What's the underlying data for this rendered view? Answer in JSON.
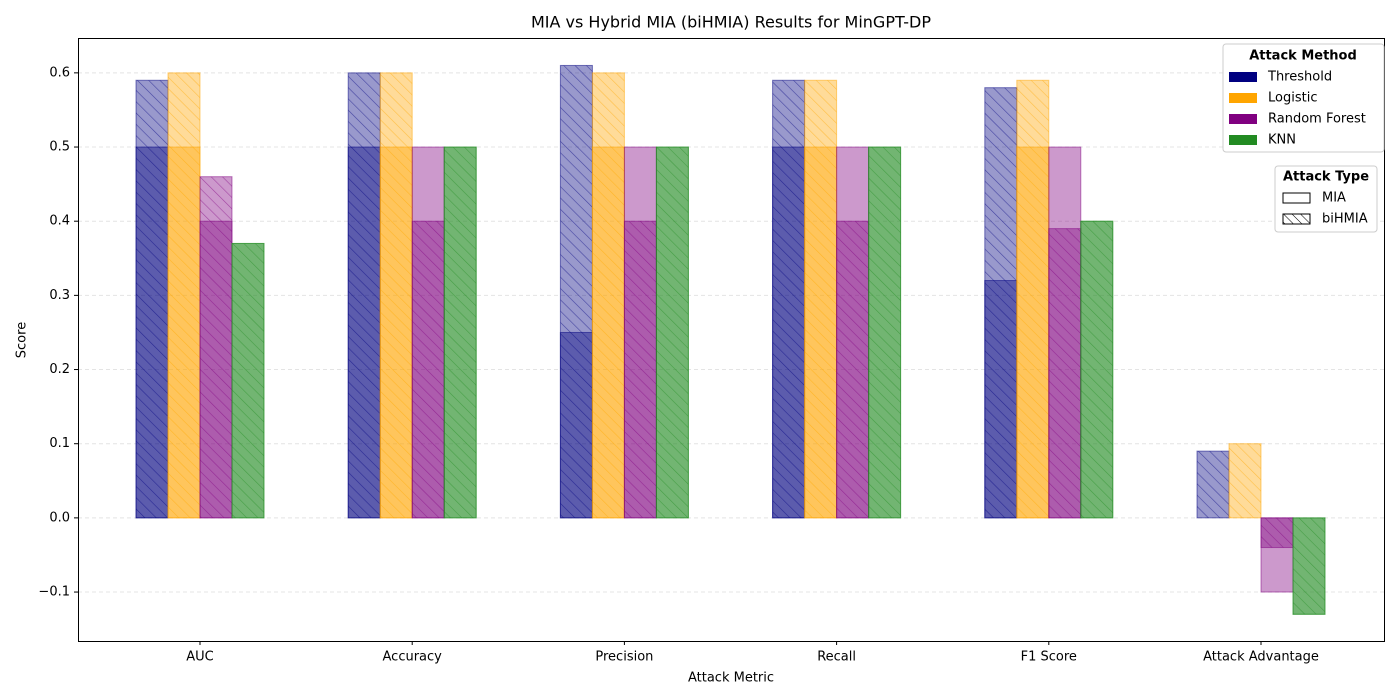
{
  "chart_data": {
    "type": "overlaid-bar",
    "title": "MIA vs Hybrid MIA (biHMIA) Results for MinGPT-DP",
    "xlabel": "Attack Metric",
    "ylabel": "Score",
    "categories": [
      "AUC",
      "Accuracy",
      "Precision",
      "Recall",
      "F1 Score",
      "Attack Advantage"
    ],
    "series": [
      {
        "name": "Threshold",
        "color": "#000080",
        "values": [
          0.5,
          0.5,
          0.25,
          0.5,
          0.32,
          0
        ],
        "hatched_values": [
          0.59,
          0.6,
          0.61,
          0.59,
          0.58,
          0.09
        ]
      },
      {
        "name": "Logistic",
        "color": "#ffa500",
        "values": [
          0.5,
          0.5,
          0.5,
          0.5,
          0.5,
          0
        ],
        "hatched_values": [
          0.6,
          0.6,
          0.6,
          0.59,
          0.59,
          0.1
        ]
      },
      {
        "name": "Random Forest",
        "color": "#800080",
        "values": [
          0.4,
          0.5,
          0.5,
          0.5,
          0.5,
          -0.1
        ],
        "hatched_values": [
          0.46,
          0.4,
          0.4,
          0.4,
          0.39,
          -0.04
        ]
      },
      {
        "name": "KNN",
        "color": "#228b22",
        "values": [
          0.37,
          0.5,
          0.5,
          0.5,
          0.4,
          -0.13
        ],
        "hatched_values": [
          0.37,
          0.5,
          0.5,
          0.5,
          0.4,
          -0.13
        ]
      }
    ],
    "legend_method_title": "Attack Method",
    "legend_type_title": "Attack Type",
    "attack_types": [
      "MIA",
      "biHMIA"
    ],
    "ylim": [
      -0.166,
      0.647
    ],
    "yticks": [
      {
        "value": -0.1,
        "label": "−0.1"
      },
      {
        "value": 0,
        "label": "0.0"
      },
      0.1,
      0.2,
      0.3,
      0.4,
      0.5,
      0.6
    ],
    "grid": true
  }
}
